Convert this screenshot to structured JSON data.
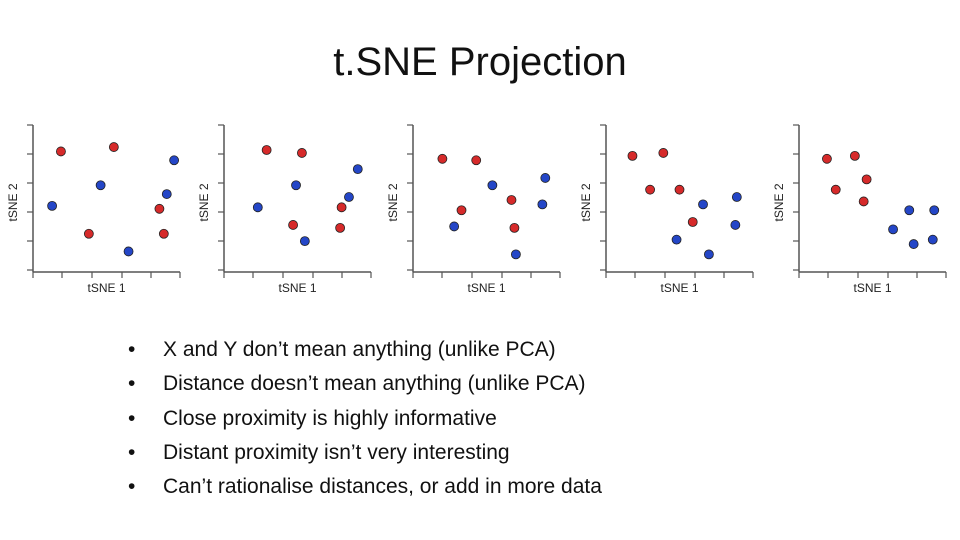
{
  "title": "t.SNE Projection",
  "bullets": [
    "X and Y don’t mean anything (unlike PCA)",
    "Distance doesn’t mean anything (unlike PCA)",
    "Close proximity is highly informative",
    "Distant proximity isn’t very interesting",
    "Can’t rationalise distances, or add in more data"
  ],
  "bullet_glyph": "•",
  "colors": {
    "red": "#d62a2a",
    "blue": "#2446c7",
    "axis": "#555555"
  },
  "chart_data": [
    {
      "type": "scatter",
      "xlabel": "tSNE 1",
      "ylabel": "tSNE 2",
      "xlim": [
        0,
        10
      ],
      "ylim": [
        0,
        10
      ],
      "grid": false,
      "series": [
        {
          "color": "red",
          "points": [
            [
              1.9,
              8.2
            ],
            [
              5.5,
              8.5
            ],
            [
              3.8,
              2.6
            ],
            [
              8.6,
              4.3
            ],
            [
              8.9,
              2.6
            ]
          ]
        },
        {
          "color": "blue",
          "points": [
            [
              1.3,
              4.5
            ],
            [
              4.6,
              5.9
            ],
            [
              6.5,
              1.4
            ],
            [
              9.1,
              5.3
            ],
            [
              9.6,
              7.6
            ]
          ]
        }
      ]
    },
    {
      "type": "scatter",
      "xlabel": "tSNE 1",
      "ylabel": "tSNE 2",
      "xlim": [
        0,
        10
      ],
      "ylim": [
        0,
        10
      ],
      "grid": false,
      "series": [
        {
          "color": "red",
          "points": [
            [
              2.9,
              8.3
            ],
            [
              5.3,
              8.1
            ],
            [
              4.7,
              3.2
            ],
            [
              8.0,
              4.4
            ],
            [
              7.9,
              3.0
            ]
          ]
        },
        {
          "color": "blue",
          "points": [
            [
              2.3,
              4.4
            ],
            [
              4.9,
              5.9
            ],
            [
              5.5,
              2.1
            ],
            [
              8.5,
              5.1
            ],
            [
              9.1,
              7.0
            ]
          ]
        }
      ]
    },
    {
      "type": "scatter",
      "xlabel": "tSNE 1",
      "ylabel": "tSNE 2",
      "xlim": [
        0,
        10
      ],
      "ylim": [
        0,
        10
      ],
      "grid": false,
      "series": [
        {
          "color": "red",
          "points": [
            [
              2.0,
              7.7
            ],
            [
              4.3,
              7.6
            ],
            [
              3.3,
              4.2
            ],
            [
              6.7,
              4.9
            ],
            [
              6.9,
              3.0
            ]
          ]
        },
        {
          "color": "blue",
          "points": [
            [
              2.8,
              3.1
            ],
            [
              5.4,
              5.9
            ],
            [
              7.0,
              1.2
            ],
            [
              8.8,
              4.6
            ],
            [
              9.0,
              6.4
            ]
          ]
        }
      ]
    },
    {
      "type": "scatter",
      "xlabel": "tSNE 1",
      "ylabel": "tSNE 2",
      "xlim": [
        0,
        10
      ],
      "ylim": [
        0,
        10
      ],
      "grid": false,
      "series": [
        {
          "color": "red",
          "points": [
            [
              1.8,
              7.9
            ],
            [
              3.9,
              8.1
            ],
            [
              3.0,
              5.6
            ],
            [
              5.0,
              5.6
            ],
            [
              5.9,
              3.4
            ]
          ]
        },
        {
          "color": "blue",
          "points": [
            [
              4.8,
              2.2
            ],
            [
              6.6,
              4.6
            ],
            [
              7.0,
              1.2
            ],
            [
              8.9,
              5.1
            ],
            [
              8.8,
              3.2
            ]
          ]
        }
      ]
    },
    {
      "type": "scatter",
      "xlabel": "tSNE 1",
      "ylabel": "tSNE 2",
      "xlim": [
        0,
        10
      ],
      "ylim": [
        0,
        10
      ],
      "grid": false,
      "series": [
        {
          "color": "red",
          "points": [
            [
              1.9,
              7.7
            ],
            [
              3.8,
              7.9
            ],
            [
              2.5,
              5.6
            ],
            [
              4.6,
              6.3
            ],
            [
              4.4,
              4.8
            ]
          ]
        },
        {
          "color": "blue",
          "points": [
            [
              6.4,
              2.9
            ],
            [
              7.5,
              4.2
            ],
            [
              7.8,
              1.9
            ],
            [
              9.1,
              2.2
            ],
            [
              9.2,
              4.2
            ]
          ]
        }
      ]
    }
  ]
}
